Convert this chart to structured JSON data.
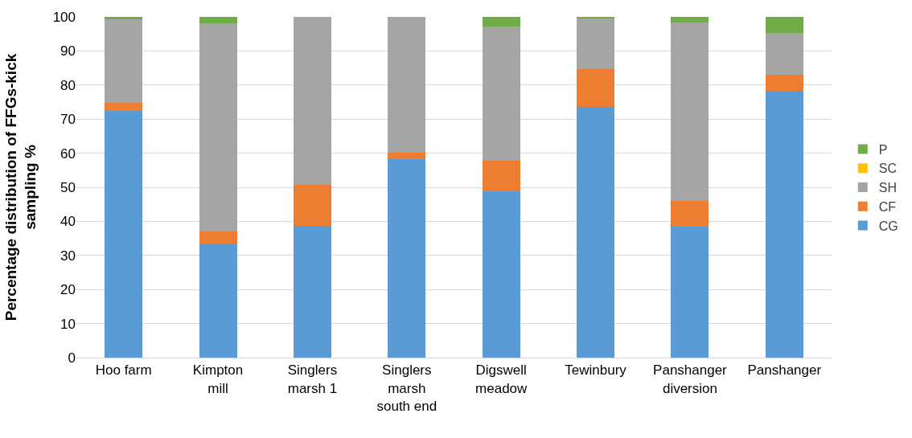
{
  "chart_data": {
    "type": "bar",
    "stacked": true,
    "ylabel": "Percentage distribution of FFGs-kick\nsampling %",
    "categories": [
      "Hoo farm",
      "Kimpton\nmill",
      "Singlers\nmarsh 1",
      "Singlers\nmarsh\nsouth end",
      "Digswell\nmeadow",
      "Tewinbury",
      "Panshanger\ndiversion",
      "Panshanger"
    ],
    "series": [
      {
        "name": "CG",
        "color": "#5b9bd5",
        "values": [
          72.3,
          33.3,
          38.7,
          58.2,
          48.8,
          73.6,
          38.5,
          78.2
        ]
      },
      {
        "name": "CF",
        "color": "#ed7d31",
        "values": [
          2.4,
          3.7,
          12.1,
          2.0,
          8.9,
          11.1,
          7.6,
          4.9
        ]
      },
      {
        "name": "SH",
        "color": "#a5a5a5",
        "values": [
          24.6,
          61.0,
          49.2,
          39.8,
          39.5,
          14.9,
          52.3,
          12.1
        ]
      },
      {
        "name": "SC",
        "color": "#ffc000",
        "values": [
          0,
          0,
          0,
          0,
          0,
          0,
          0,
          0
        ]
      },
      {
        "name": "P",
        "color": "#70ad47",
        "values": [
          0.7,
          2.0,
          0,
          0,
          2.8,
          0.4,
          1.6,
          4.8
        ]
      }
    ],
    "ylim": [
      0,
      100
    ],
    "yticks": [
      0,
      10,
      20,
      30,
      40,
      50,
      60,
      70,
      80,
      90,
      100
    ],
    "grid": "y",
    "legend": "right"
  }
}
